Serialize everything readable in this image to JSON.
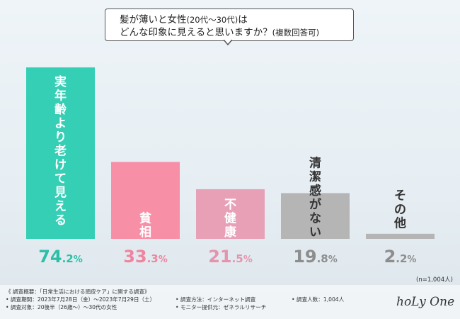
{
  "title": {
    "line1_main": "髪が薄いと女性",
    "line1_paren": "(20代〜30代)",
    "line1_end": "は",
    "line2_main": "どんな印象に見えると思いますか？",
    "line2_paren": "(複数回答可)"
  },
  "sample_note": "(n=1,004人)",
  "footer": {
    "overview": "《 調査概要：「日常生活における頭皮ケア」に関する調査》",
    "period": "• 調査期間：2023年7月28日（金）〜2023年7月29日（土）",
    "target": "• 調査対象：20後半（26歳〜）〜30代の女性",
    "method": "• 調査方法：インターネット調査",
    "provider": "• モニター提供元：ゼネラルリサーチ",
    "count": "• 調査人数：1,004人"
  },
  "logo": "hoLy One",
  "chart_data": {
    "type": "bar",
    "title": "髪が薄いと女性(20代〜30代)はどんな印象に見えると思いますか？(複数回答可)",
    "categories": [
      "実年齢より老けて見える",
      "貧相",
      "不健康",
      "清潔感がない",
      "その他"
    ],
    "values": [
      74.2,
      33.3,
      21.5,
      19.8,
      2.2
    ],
    "value_labels": [
      "74.2%",
      "33.3%",
      "21.5%",
      "19.8%",
      "2.2%"
    ],
    "unit": "%",
    "ylim": [
      0,
      100
    ],
    "colors": [
      "#35cfb5",
      "#f78fa7",
      "#e8a0b7",
      "#b5b5b5",
      "#b5b5b5"
    ],
    "label_colors": [
      "#2bbfa6",
      "#f0849e",
      "#e494ad",
      "#8d8d8d",
      "#8d8d8d"
    ],
    "inner_text_colors": [
      "#ffffff",
      "#ffffff",
      "#ffffff",
      "#333333",
      "#333333"
    ],
    "xlabel": "",
    "ylabel": "",
    "grid": false,
    "legend": "none"
  }
}
